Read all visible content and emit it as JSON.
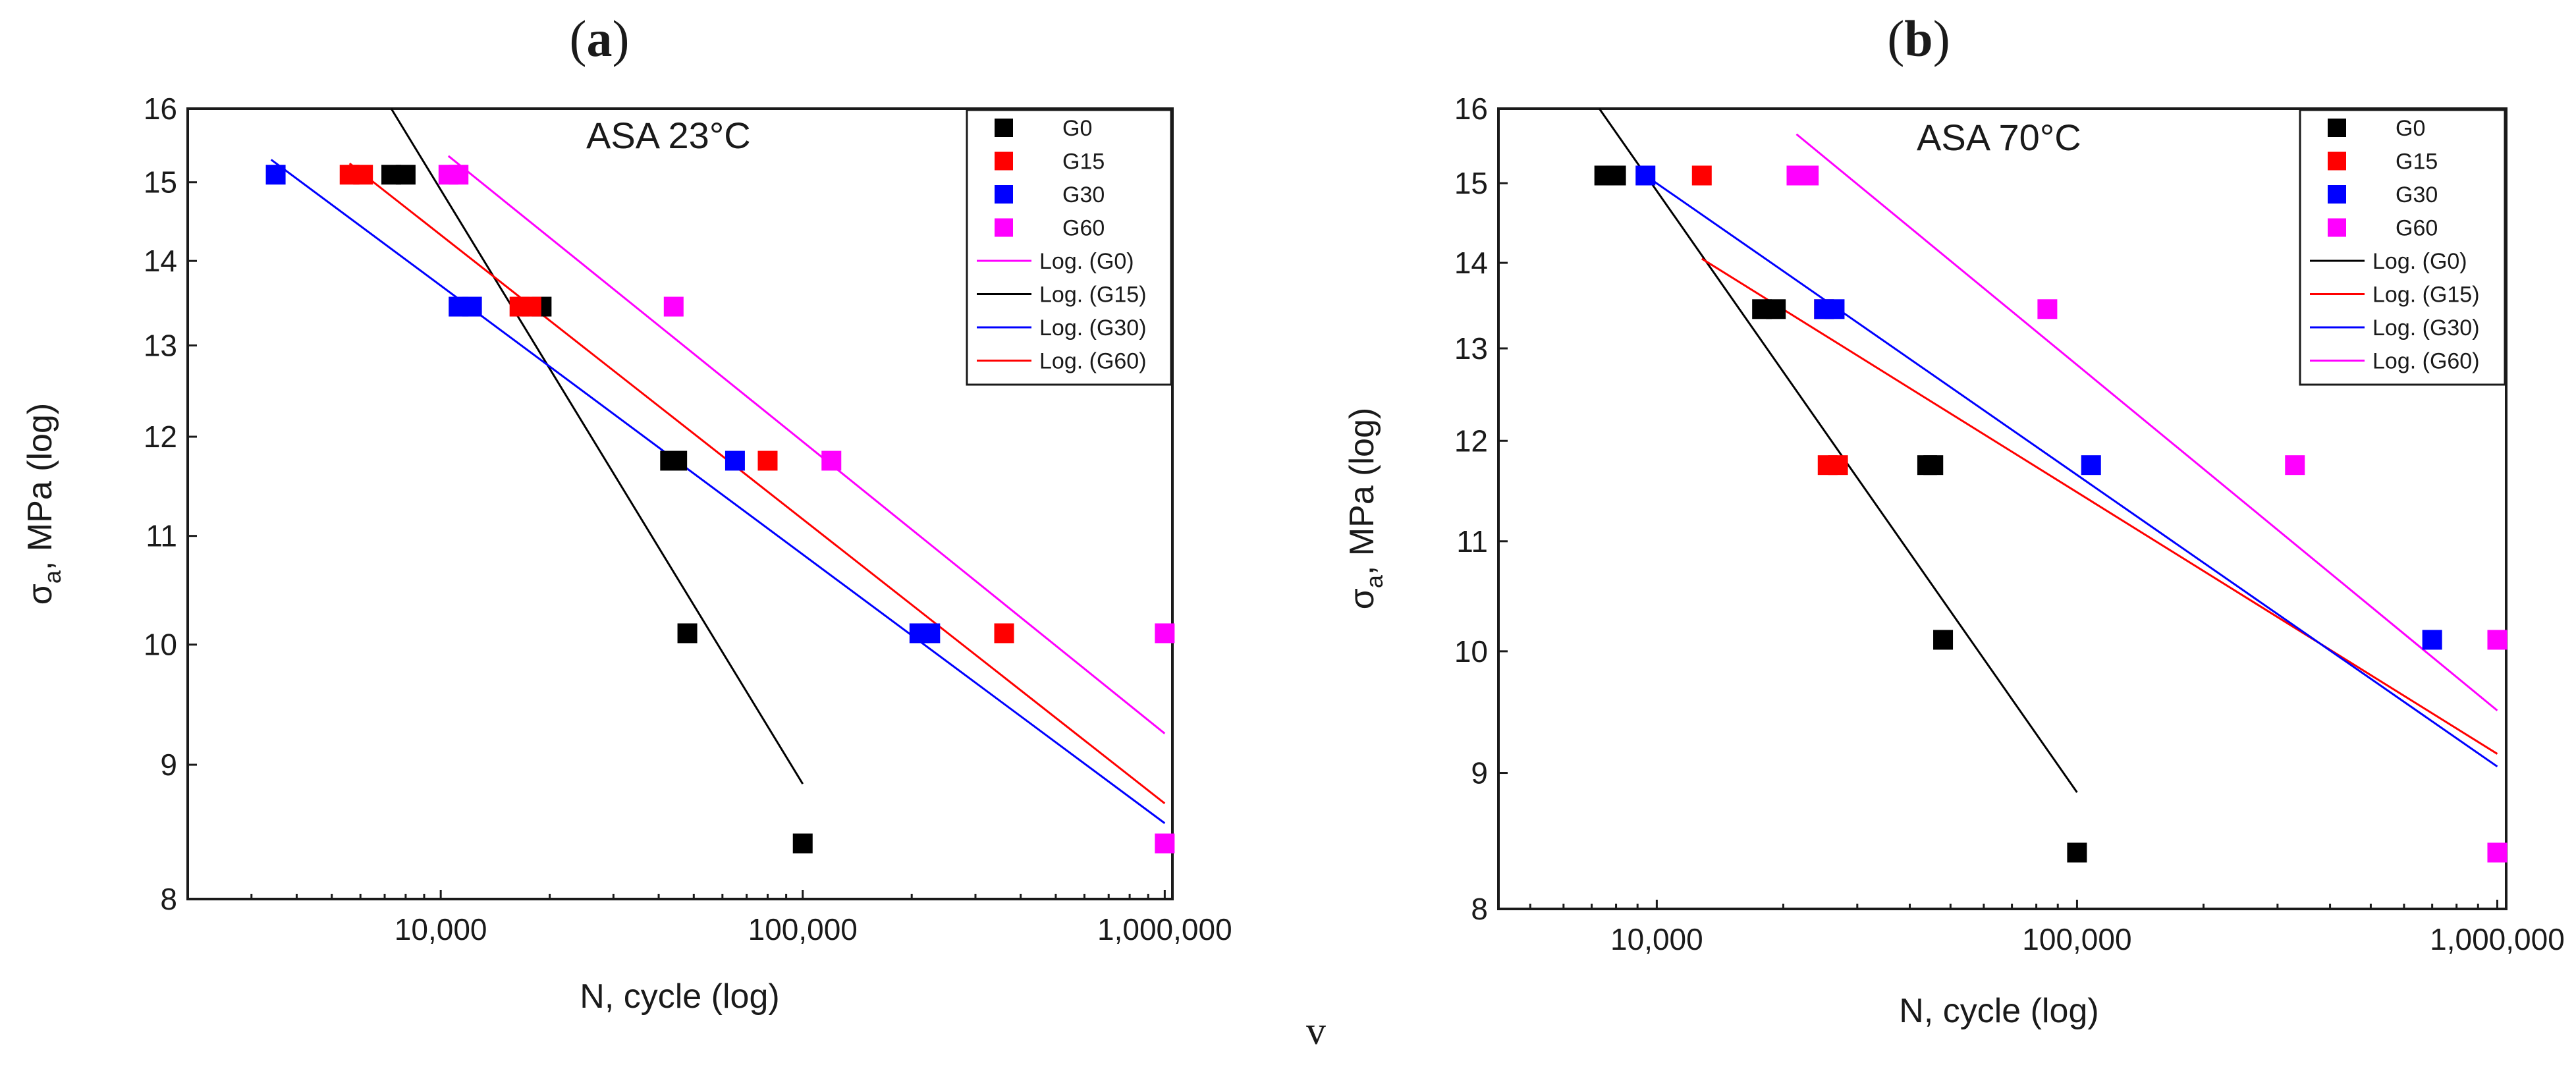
{
  "figure": {
    "footer_text": "v"
  },
  "chart_data": [
    {
      "type": "scatter",
      "panel_label": "(a)",
      "panel_letter": "a",
      "annotation": "ASA 23°C",
      "xlabel": "N, cycle (log)",
      "ylabel_main": "σ",
      "ylabel_sub": "a",
      "ylabel_rest": ", MPa (log)",
      "x_scale": "log",
      "y_scale": "log",
      "xlim": [
        2000,
        1050000
      ],
      "ylim": [
        8,
        16
      ],
      "x_ticks": [
        10000,
        100000,
        1000000
      ],
      "x_tick_labels": [
        "10,000",
        "100,000",
        "1,000,000"
      ],
      "y_ticks": [
        8,
        9,
        10,
        11,
        12,
        13,
        14,
        15,
        16
      ],
      "y_tick_labels": [
        "8",
        "9",
        "10",
        "11",
        "12",
        "13",
        "14",
        "15",
        "16"
      ],
      "legend_position": "top-right",
      "series": [
        {
          "name": "G0",
          "color": "#000000",
          "points": [
            [
              7300,
              15.1
            ],
            [
              8000,
              15.1
            ],
            [
              19000,
              13.45
            ],
            [
              43000,
              11.75
            ],
            [
              45000,
              11.75
            ],
            [
              48000,
              10.1
            ],
            [
              100000,
              8.4
            ]
          ]
        },
        {
          "name": "G15",
          "color": "#ff0000",
          "points": [
            [
              5600,
              15.1
            ],
            [
              6100,
              15.1
            ],
            [
              16500,
              13.45
            ],
            [
              17800,
              13.45
            ],
            [
              80000,
              11.75
            ],
            [
              360000,
              10.1
            ]
          ]
        },
        {
          "name": "G30",
          "color": "#0000ff",
          "points": [
            [
              3500,
              15.1
            ],
            [
              11200,
              13.45
            ],
            [
              12200,
              13.45
            ],
            [
              65000,
              11.75
            ],
            [
              210000,
              10.1
            ],
            [
              225000,
              10.1
            ]
          ]
        },
        {
          "name": "G60",
          "color": "#ff00ff",
          "points": [
            [
              10500,
              15.1
            ],
            [
              11200,
              15.1
            ],
            [
              44000,
              13.45
            ],
            [
              120000,
              11.75
            ],
            [
              1000000,
              10.1
            ],
            [
              1000000,
              8.4
            ]
          ]
        }
      ],
      "trend_lines": [
        {
          "name": "Log. (G0)",
          "color": "#ff00ff",
          "from": [
            10500,
            15.35
          ],
          "to": [
            1000000,
            9.25
          ]
        },
        {
          "name": "Log. (G15)",
          "color": "#000000",
          "from": [
            7300,
            16.0
          ],
          "to": [
            100000,
            8.85
          ]
        },
        {
          "name": "Log. (G30)",
          "color": "#0000ff",
          "from": [
            3400,
            15.3
          ],
          "to": [
            1000000,
            8.55
          ]
        },
        {
          "name": "Log. (G60)",
          "color": "#ff0000",
          "from": [
            5600,
            15.25
          ],
          "to": [
            1000000,
            8.7
          ]
        }
      ]
    },
    {
      "type": "scatter",
      "panel_label": "(b)",
      "panel_letter": "b",
      "annotation": "ASA 70°C",
      "xlabel": "N, cycle (log)",
      "ylabel_main": "σ",
      "ylabel_sub": "a",
      "ylabel_rest": ", MPa (log)",
      "x_scale": "log",
      "y_scale": "log",
      "xlim": [
        4200,
        1050000
      ],
      "ylim": [
        8,
        16
      ],
      "x_ticks": [
        10000,
        100000,
        1000000
      ],
      "x_tick_labels": [
        "10,000",
        "100,000",
        "1,000,000"
      ],
      "y_ticks": [
        8,
        9,
        10,
        11,
        12,
        13,
        14,
        15,
        16
      ],
      "y_tick_labels": [
        "8",
        "9",
        "10",
        "11",
        "12",
        "13",
        "14",
        "15",
        "16"
      ],
      "legend_position": "top-right",
      "series": [
        {
          "name": "G0",
          "color": "#000000",
          "points": [
            [
              7500,
              15.1
            ],
            [
              8000,
              15.1
            ],
            [
              17800,
              13.45
            ],
            [
              19200,
              13.45
            ],
            [
              44000,
              11.75
            ],
            [
              45500,
              11.75
            ],
            [
              48000,
              10.1
            ],
            [
              100000,
              8.4
            ]
          ]
        },
        {
          "name": "G15",
          "color": "#ff0000",
          "points": [
            [
              12800,
              15.1
            ],
            [
              25000,
              13.45
            ],
            [
              25500,
              11.75
            ],
            [
              27000,
              11.75
            ]
          ]
        },
        {
          "name": "G30",
          "color": "#0000ff",
          "points": [
            [
              9400,
              15.1
            ],
            [
              25000,
              13.45
            ],
            [
              26500,
              13.45
            ],
            [
              108000,
              11.75
            ],
            [
              700000,
              10.1
            ]
          ]
        },
        {
          "name": "G60",
          "color": "#ff00ff",
          "points": [
            [
              21500,
              15.1
            ],
            [
              23000,
              15.1
            ],
            [
              85000,
              13.45
            ],
            [
              330000,
              11.75
            ],
            [
              1000000,
              10.1
            ],
            [
              1000000,
              8.4
            ]
          ]
        }
      ],
      "trend_lines": [
        {
          "name": "Log. (G0)",
          "color": "#000000",
          "from": [
            7300,
            16.0
          ],
          "to": [
            100000,
            8.85
          ]
        },
        {
          "name": "Log. (G15)",
          "color": "#ff0000",
          "from": [
            12800,
            14.05
          ],
          "to": [
            1000000,
            9.15
          ]
        },
        {
          "name": "Log. (G30)",
          "color": "#0000ff",
          "from": [
            9400,
            15.1
          ],
          "to": [
            1000000,
            9.05
          ]
        },
        {
          "name": "Log. (G60)",
          "color": "#ff00ff",
          "from": [
            21500,
            15.65
          ],
          "to": [
            1000000,
            9.5
          ]
        }
      ]
    }
  ]
}
